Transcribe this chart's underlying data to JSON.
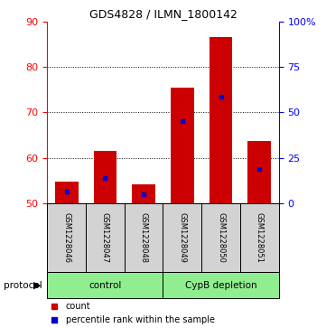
{
  "title": "GDS4828 / ILMN_1800142",
  "samples": [
    "GSM1228046",
    "GSM1228047",
    "GSM1228048",
    "GSM1228049",
    "GSM1228050",
    "GSM1228051"
  ],
  "bar_bottom": 50,
  "count_values": [
    54.8,
    61.5,
    54.2,
    75.5,
    86.5,
    63.7
  ],
  "percentile_values": [
    52.5,
    55.5,
    52.0,
    68.0,
    73.5,
    57.5
  ],
  "left_ylim": [
    50,
    90
  ],
  "left_yticks": [
    50,
    60,
    70,
    80,
    90
  ],
  "right_yticks": [
    0,
    25,
    50,
    75,
    100
  ],
  "right_yticklabels": [
    "0",
    "25",
    "50",
    "75",
    "100%"
  ],
  "bar_color": "#cc0000",
  "percentile_color": "#0000cc",
  "green_color": "#90ee90",
  "label_area_color": "#d3d3d3",
  "legend_count": "count",
  "legend_percentile": "percentile rank within the sample",
  "protocol_label": "protocol"
}
